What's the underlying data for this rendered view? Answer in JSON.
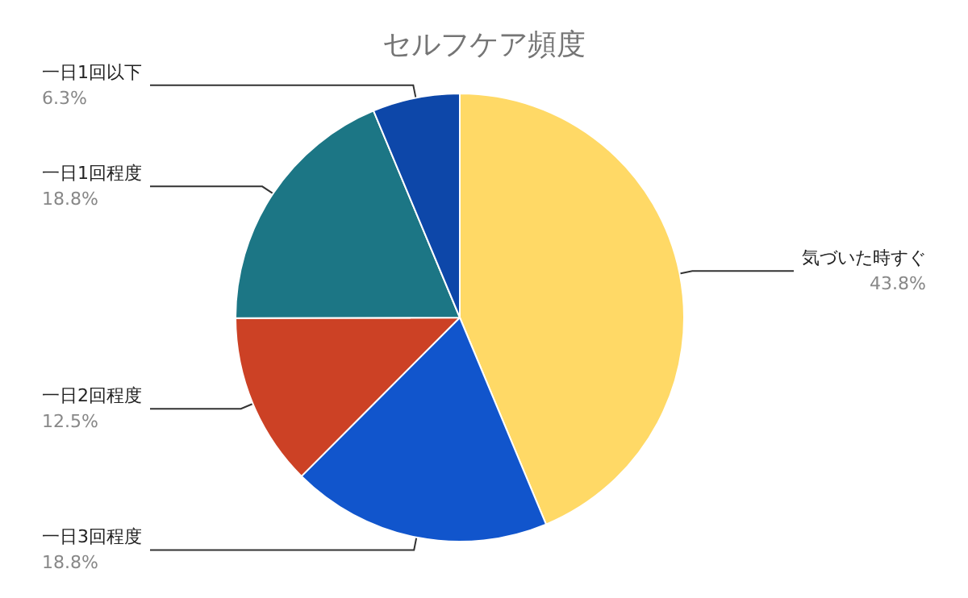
{
  "chart_data": {
    "type": "pie",
    "title": "セルフケア頻度",
    "categories": [
      "気づいた時すぐ",
      "一日3回程度",
      "一日2回程度",
      "一日1回程度",
      "一日1回以下"
    ],
    "values": [
      43.8,
      18.8,
      12.5,
      18.8,
      6.3
    ],
    "value_labels": [
      "43.8%",
      "18.8%",
      "12.5%",
      "18.8%",
      "6.3%"
    ],
    "colors": [
      "#ffd966",
      "#1155cc",
      "#cc4125",
      "#1c7685",
      "#0d47a9"
    ],
    "legend": false
  }
}
